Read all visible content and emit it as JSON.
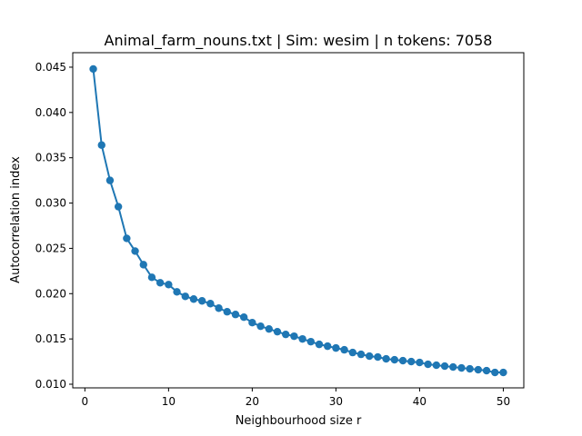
{
  "chart_data": {
    "type": "line",
    "title": "Animal_farm_nouns.txt | Sim: wesim | n tokens: 7058",
    "xlabel": "Neighbourhood size r",
    "ylabel": "Autocorrelation index",
    "xlim": [
      -1.45,
      52.45
    ],
    "ylim": [
      0.0096,
      0.0466
    ],
    "xticks": [
      0,
      10,
      20,
      30,
      40,
      50
    ],
    "yticks": [
      0.01,
      0.015,
      0.02,
      0.025,
      0.03,
      0.035,
      0.04,
      0.045
    ],
    "ytick_labels": [
      "0.010",
      "0.015",
      "0.020",
      "0.025",
      "0.030",
      "0.035",
      "0.040",
      "0.045"
    ],
    "grid": false,
    "line_color": "#1f77b4",
    "series": [
      {
        "x": [
          1,
          2,
          3,
          4,
          5,
          6,
          7,
          8,
          9,
          10,
          11,
          12,
          13,
          14,
          15,
          16,
          17,
          18,
          19,
          20,
          21,
          22,
          23,
          24,
          25,
          26,
          27,
          28,
          29,
          30,
          31,
          32,
          33,
          34,
          35,
          36,
          37,
          38,
          39,
          40,
          41,
          42,
          43,
          44,
          45,
          46,
          47,
          48,
          49,
          50
        ],
        "y": [
          0.0448,
          0.0364,
          0.0325,
          0.0296,
          0.0261,
          0.0247,
          0.0232,
          0.0218,
          0.0212,
          0.021,
          0.0202,
          0.0197,
          0.0194,
          0.0192,
          0.0189,
          0.0184,
          0.018,
          0.0177,
          0.0174,
          0.0168,
          0.0164,
          0.0161,
          0.0158,
          0.0155,
          0.0153,
          0.015,
          0.0147,
          0.0144,
          0.0142,
          0.014,
          0.0138,
          0.0135,
          0.0133,
          0.0131,
          0.013,
          0.0128,
          0.0127,
          0.0126,
          0.0125,
          0.0124,
          0.0122,
          0.0121,
          0.012,
          0.0119,
          0.0118,
          0.0117,
          0.0116,
          0.0115,
          0.0113,
          0.0113
        ]
      }
    ]
  }
}
